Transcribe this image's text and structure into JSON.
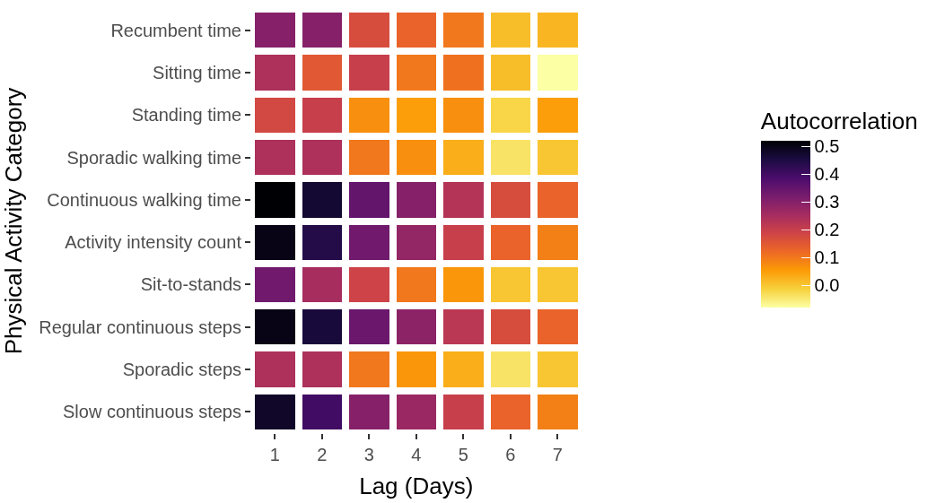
{
  "chart_data": {
    "type": "heatmap",
    "xlabel": "Lag (Days)",
    "ylabel": "Physical Activity Category",
    "clabel": "Autocorrelation",
    "categories": [
      "1",
      "2",
      "3",
      "4",
      "5",
      "6",
      "7"
    ],
    "y_categories": [
      "Recumbent time",
      "Sitting time",
      "Standing time",
      "Sporadic walking time",
      "Continuous walking time",
      "Activity intensity count",
      "Sit-to-stands",
      "Regular continuous steps",
      "Sporadic steps",
      "Slow continuous steps"
    ],
    "cells": [
      [
        0.3,
        0.3,
        0.17,
        0.13,
        0.1,
        0.01,
        0.02
      ],
      [
        0.24,
        0.15,
        0.2,
        0.1,
        0.11,
        0.01,
        -0.08
      ],
      [
        0.18,
        0.2,
        0.07,
        0.05,
        0.07,
        -0.02,
        0.05
      ],
      [
        0.24,
        0.24,
        0.1,
        0.07,
        0.03,
        -0.04,
        0.0
      ],
      [
        0.52,
        0.47,
        0.35,
        0.3,
        0.23,
        0.17,
        0.13
      ],
      [
        0.5,
        0.44,
        0.33,
        0.28,
        0.2,
        0.13,
        0.09
      ],
      [
        0.33,
        0.25,
        0.19,
        0.1,
        0.06,
        0.0,
        0.0
      ],
      [
        0.5,
        0.46,
        0.34,
        0.29,
        0.22,
        0.17,
        0.13
      ],
      [
        0.24,
        0.24,
        0.1,
        0.06,
        0.03,
        -0.04,
        0.0
      ],
      [
        0.48,
        0.4,
        0.3,
        0.27,
        0.2,
        0.13,
        0.09
      ]
    ],
    "clim": [
      -0.08,
      0.52
    ],
    "cticks": [
      {
        "value": 0,
        "label": "0.0"
      },
      {
        "value": 0.1,
        "label": "0.1"
      },
      {
        "value": 0.2,
        "label": "0.2"
      },
      {
        "value": 0.3,
        "label": "0.3"
      },
      {
        "value": 0.4,
        "label": "0.4"
      },
      {
        "value": 0.5,
        "label": "0.5"
      }
    ]
  }
}
